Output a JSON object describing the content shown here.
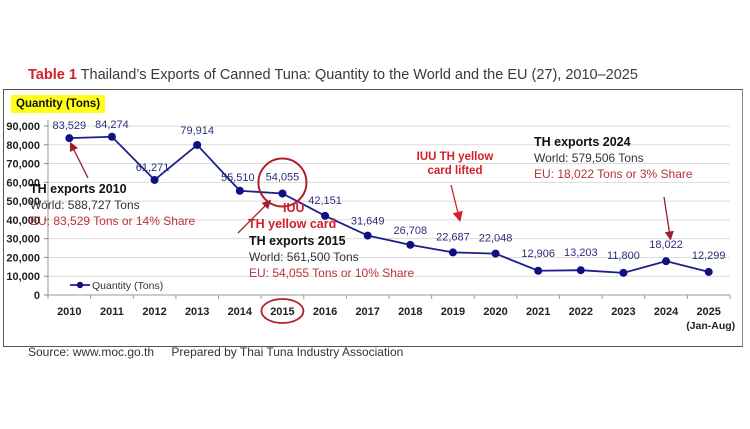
{
  "title": {
    "table_number": "Table 1",
    "text": " Thailand’s Exports of Canned Tuna: Quantity to the World and the EU (27), 2010–2025"
  },
  "footer": {
    "source": "Source: www.moc.go.th",
    "prepared_by": "Prepared by Thai Tuna Industry Association"
  },
  "colors": {
    "line": "#1c1f8a",
    "marker": "#0d1080",
    "annotation_red": "#d0202a",
    "eu_text": "#b8333a",
    "highlight": "#ffff1a",
    "grid": "#dcdcdc"
  },
  "annotations": {
    "th2010": {
      "heading": "TH exports 2010",
      "world": "World: 588,727 Tons",
      "eu": "EU: 83,529 Tons or 14% Share"
    },
    "iuu_yellow": {
      "line1": "IUU",
      "line2": "TH yellow card"
    },
    "th2015": {
      "heading": "TH exports 2015",
      "world": "World: 561,500 Tons",
      "eu": "EU: 54,055 Tons or 10% Share"
    },
    "iuu_lifted": {
      "line1": "IUU TH yellow",
      "line2": "card lifted"
    },
    "th2024": {
      "heading": "TH exports 2024",
      "world": "World: 579,506 Tons",
      "eu": "EU: 18,022 Tons or 3% Share"
    }
  },
  "chart_data": {
    "type": "line",
    "title": "Table 1 Thailand’s Exports of Canned Tuna: Quantity to the World and the EU (27), 2010–2025",
    "ylabel": "Quantity (Tons)",
    "xlabel": "",
    "categories": [
      "2010",
      "2011",
      "2012",
      "2013",
      "2014",
      "2015",
      "2016",
      "2017",
      "2018",
      "2019",
      "2020",
      "2021",
      "2022",
      "2023",
      "2024",
      "2025"
    ],
    "category_sublabels": {
      "2025": "(Jan-Aug)"
    },
    "series": [
      {
        "name": "Quantity (Tons)",
        "values": [
          83529,
          84274,
          61271,
          79914,
          55510,
          54055,
          42151,
          31649,
          26708,
          22687,
          22048,
          12906,
          13203,
          11800,
          18022,
          12299
        ],
        "labels": [
          "83,529",
          "84,274",
          "61,271",
          "79,914",
          "55,510",
          "54,055",
          "42,151",
          "31,649",
          "26,708",
          "22,687",
          "22,048",
          "12,906",
          "13,203",
          "11,800",
          "18,022",
          "12,299"
        ]
      }
    ],
    "ylim": [
      0,
      90000
    ],
    "yticks": [
      0,
      10000,
      20000,
      30000,
      40000,
      50000,
      60000,
      70000,
      80000,
      90000
    ],
    "ytick_labels": [
      "0",
      "10,000",
      "20,000",
      "30,000",
      "40,000",
      "50,000",
      "60,000",
      "70,000",
      "80,000",
      "90,000"
    ],
    "grid": true,
    "legend": "bottom-left inside plot",
    "highlighted_category": "2015"
  }
}
